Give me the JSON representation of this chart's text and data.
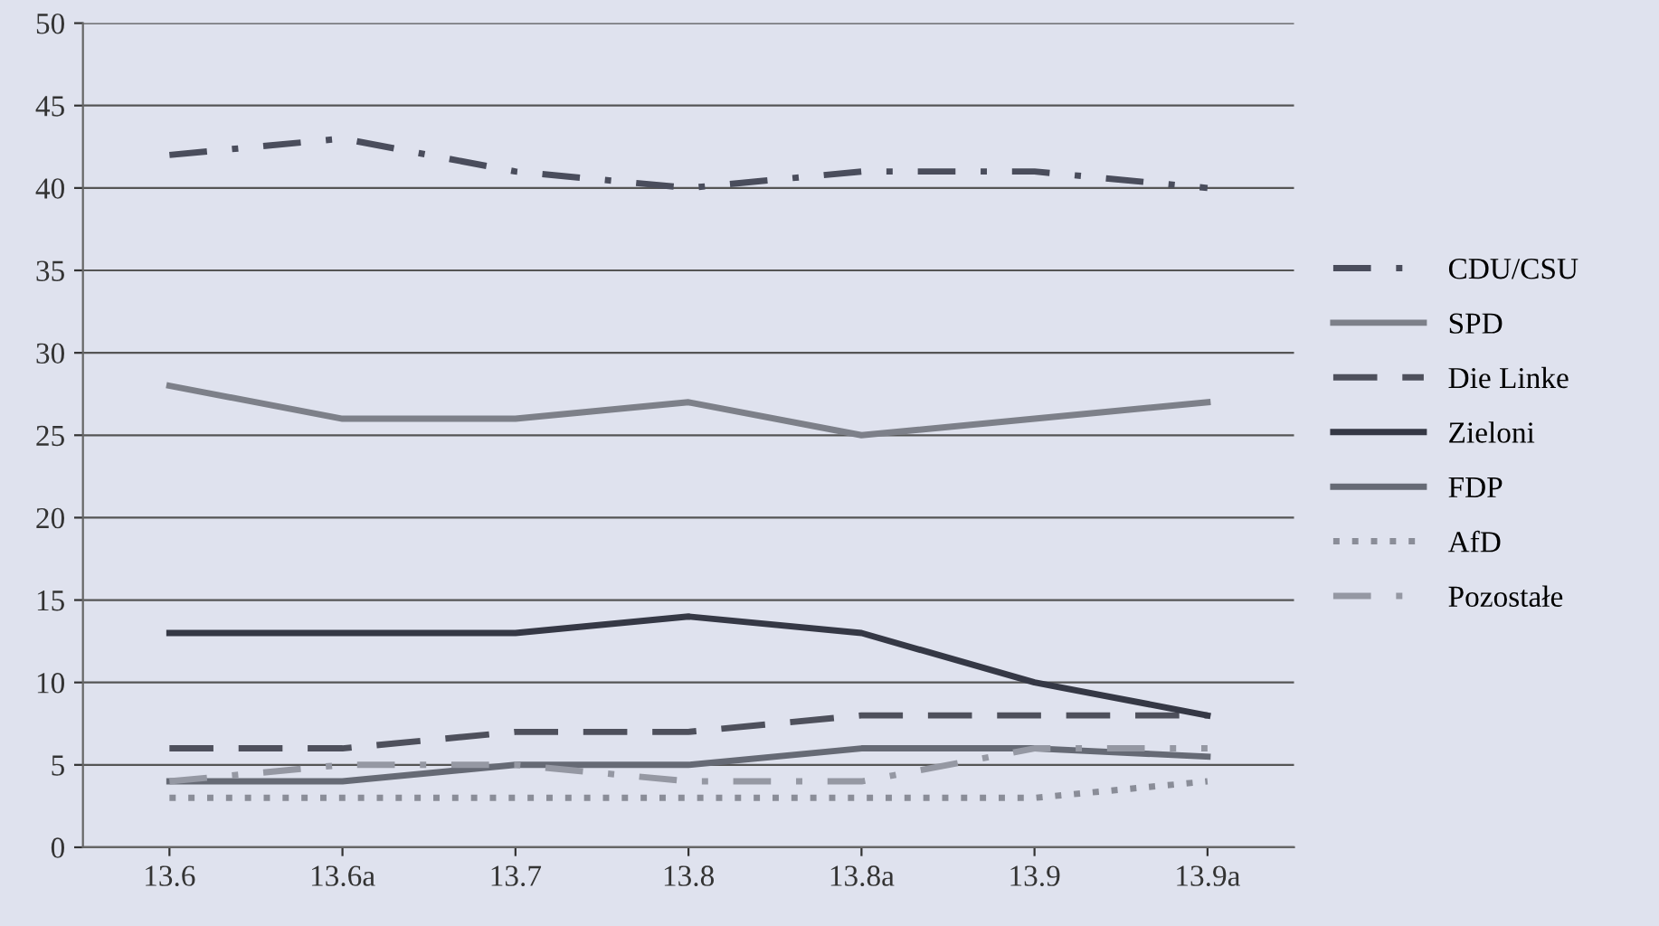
{
  "chart_data": {
    "type": "line",
    "categories": [
      "13.6",
      "13.6a",
      "13.7",
      "13.8",
      "13.8a",
      "13.9",
      "13.9a"
    ],
    "ylim": [
      0,
      50
    ],
    "yticks": [
      0,
      5,
      10,
      15,
      20,
      25,
      30,
      35,
      40,
      45,
      50
    ],
    "grid": "y",
    "legend": "right",
    "series": [
      {
        "name": "CDU/CSU",
        "color": "#4a4d5c",
        "line_style": "dashdot",
        "values": [
          42,
          43,
          41,
          40,
          41,
          41,
          40
        ]
      },
      {
        "name": "SPD",
        "color": "#7d8089",
        "line_style": "solid",
        "values": [
          28,
          26,
          26,
          27,
          25,
          26,
          27
        ]
      },
      {
        "name": "Die Linke",
        "color": "#4e505c",
        "line_style": "dashed",
        "values": [
          6,
          6,
          7,
          7,
          8,
          8,
          8
        ]
      },
      {
        "name": "Zieloni",
        "color": "#353845",
        "line_style": "solid",
        "values": [
          13,
          13,
          13,
          14,
          13,
          10,
          8
        ]
      },
      {
        "name": "FDP",
        "color": "#666a75",
        "line_style": "solid",
        "values": [
          4,
          4,
          5,
          5,
          6,
          6,
          5.5
        ]
      },
      {
        "name": "AfD",
        "color": "#8a8d98",
        "line_style": "dotted",
        "values": [
          3,
          3,
          3,
          3,
          3,
          3,
          4
        ]
      },
      {
        "name": "Pozostałe",
        "color": "#9598a3",
        "line_style": "dashdot",
        "values": [
          4,
          5,
          5,
          4,
          4,
          6,
          6
        ]
      }
    ]
  }
}
